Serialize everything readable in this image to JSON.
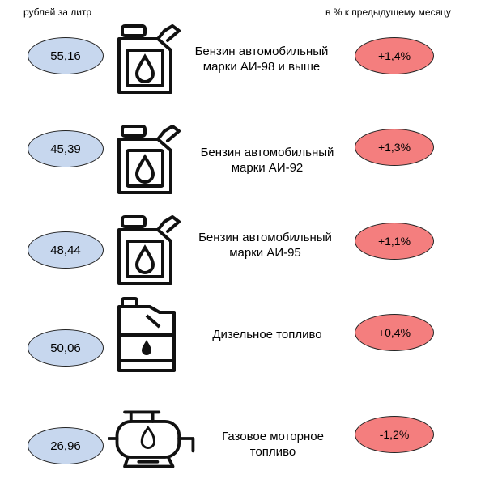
{
  "header": {
    "left_label": "рублей за литр",
    "right_label": "в % к предыдущему месяцу"
  },
  "fuels": [
    {
      "name_line1": "Бензин автомобильный",
      "name_line2": "марки АИ-98 и выше",
      "price": "55,16",
      "change": "+1,4%",
      "icon": "fuel-canister-icon"
    },
    {
      "name_line1": "Бензин автомобильный",
      "name_line2": "марки АИ-92",
      "price": "45,39",
      "change": "+1,3%",
      "icon": "fuel-canister-icon"
    },
    {
      "name_line1": "Бензин автомобильный",
      "name_line2": "марки АИ-95",
      "price": "48,44",
      "change": "+1,1%",
      "icon": "fuel-canister-icon"
    },
    {
      "name_line1": "Дизельное топливо",
      "name_line2": "",
      "price": "50,06",
      "change": "+0,4%",
      "icon": "diesel-canister-icon"
    },
    {
      "name_line1": "Газовое моторное",
      "name_line2": "топливо",
      "price": "26,96",
      "change": "-1,2%",
      "icon": "gas-tank-icon"
    }
  ],
  "colors": {
    "price_fill": "#c7d7ee",
    "change_fill": "#f47e7e"
  }
}
